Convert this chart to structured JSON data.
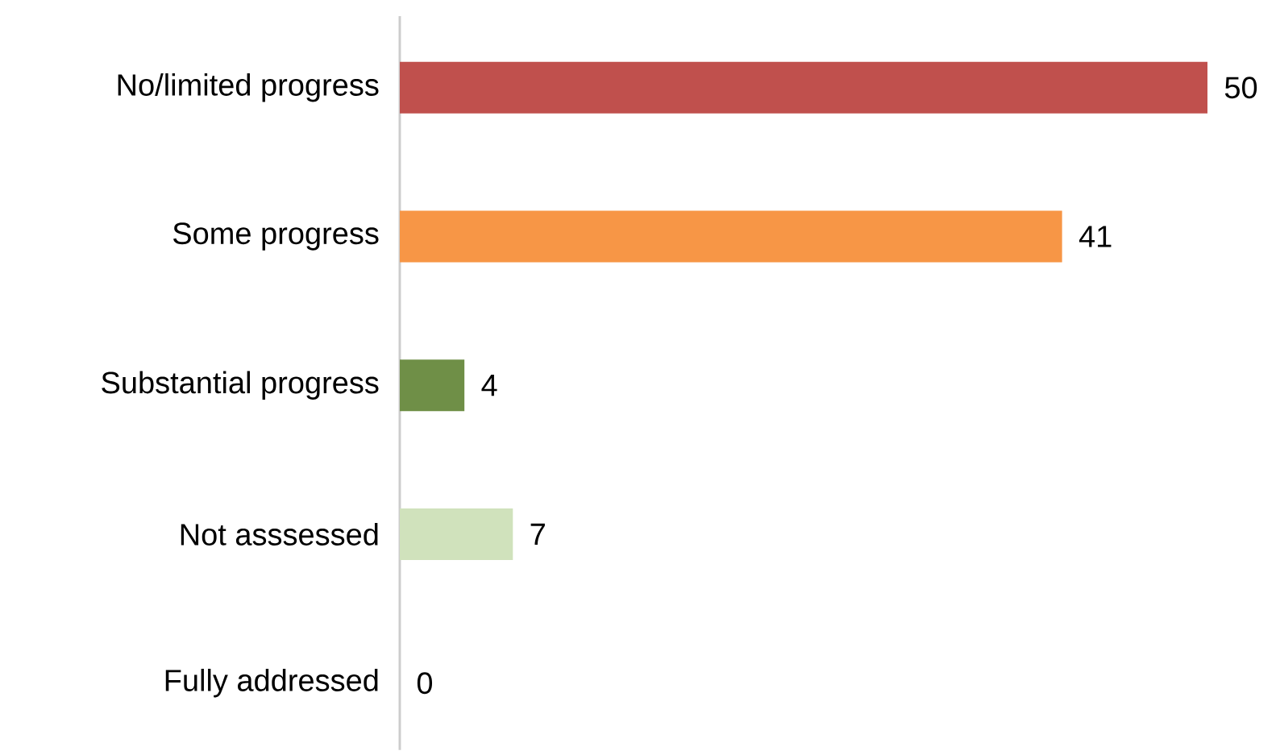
{
  "chart_data": {
    "type": "bar",
    "orientation": "horizontal",
    "categories": [
      "No/limited progress",
      "Some progress",
      "Substantial progress",
      "Not asssessed",
      "Fully addressed"
    ],
    "values": [
      50,
      41,
      4,
      7,
      0
    ],
    "colors": [
      "#c0504d",
      "#f79646",
      "#6f8f47",
      "#d0e2bc",
      "#d0e2bc"
    ],
    "data_labels": true
  }
}
